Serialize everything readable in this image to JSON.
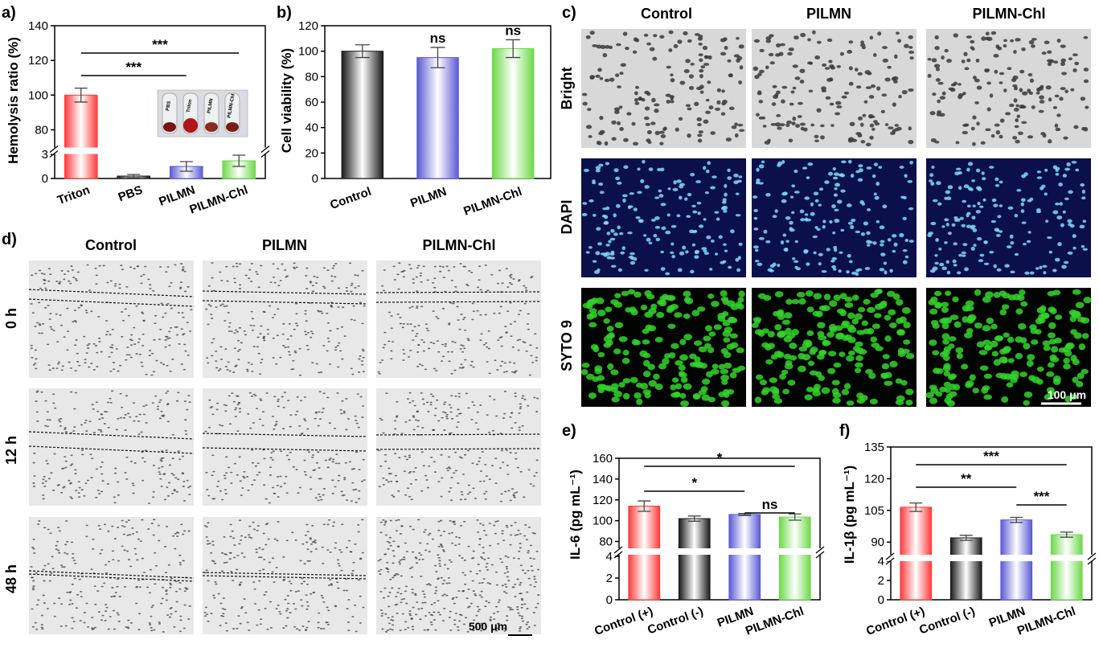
{
  "chart_data": [
    {
      "panel": "a)",
      "type": "bar",
      "ylabel": "Hemolysis ratio (%)",
      "categories": [
        "Triton",
        "PBS",
        "PILMN",
        "PILMN-Chl"
      ],
      "values": [
        100,
        0.3,
        1.5,
        2.2
      ],
      "errors": [
        4,
        0.2,
        0.6,
        0.7
      ],
      "ylim_lower": [
        0,
        3
      ],
      "ylim_upper": [
        70,
        140
      ],
      "yticks_lower": [
        "0",
        "3"
      ],
      "yticks_upper": [
        "80",
        "100",
        "120",
        "140"
      ],
      "significance": [
        {
          "from": 0,
          "to": 2,
          "label": "***"
        },
        {
          "from": 0,
          "to": 3,
          "label": "***"
        }
      ],
      "inset_tubes": [
        "PBS",
        "Triton",
        "PILMN",
        "PILMN-Chl"
      ]
    },
    {
      "panel": "b)",
      "type": "bar",
      "ylabel": "Cell viability (%)",
      "categories": [
        "Control",
        "PILMN",
        "PILMN-Chl"
      ],
      "values": [
        100,
        95,
        102
      ],
      "errors": [
        5,
        8,
        7
      ],
      "ylim": [
        0,
        120
      ],
      "yticks": [
        "0",
        "20",
        "40",
        "60",
        "80",
        "100",
        "120"
      ],
      "annotations": [
        "",
        "ns",
        "ns"
      ]
    },
    {
      "panel": "e)",
      "type": "bar",
      "ylabel": "IL-6 (pg mL⁻¹)",
      "categories": [
        "Control (+)",
        "Control (-)",
        "PILMN",
        "PILMN-Chl"
      ],
      "values": [
        114,
        102,
        106,
        103.5
      ],
      "errors": [
        5,
        2.5,
        1,
        3
      ],
      "ylim_lower": [
        0,
        4
      ],
      "ylim_upper": [
        75,
        160
      ],
      "yticks_lower": [
        "0",
        "2",
        "4"
      ],
      "yticks_upper": [
        "80",
        "100",
        "120",
        "140",
        "160"
      ],
      "significance": [
        {
          "from": 0,
          "to": 2,
          "label": "*"
        },
        {
          "from": 0,
          "to": 3,
          "label": "*"
        },
        {
          "from": 2,
          "to": 3,
          "label": "ns"
        }
      ]
    },
    {
      "panel": "f)",
      "type": "bar",
      "ylabel": "IL-1β (pg mL⁻¹)",
      "categories": [
        "Control (+)",
        "Control (-)",
        "PILMN",
        "PILMN-Chl"
      ],
      "values": [
        106.5,
        92,
        100.5,
        93.5
      ],
      "errors": [
        2,
        1.2,
        1.2,
        1.2
      ],
      "ylim_lower": [
        0,
        4
      ],
      "ylim_upper": [
        84,
        135
      ],
      "yticks_lower": [
        "0",
        "2",
        "4"
      ],
      "yticks_upper": [
        "90",
        "105",
        "120",
        "135"
      ],
      "significance": [
        {
          "from": 0,
          "to": 2,
          "label": "**"
        },
        {
          "from": 0,
          "to": 3,
          "label": "***"
        },
        {
          "from": 2,
          "to": 3,
          "label": "***"
        }
      ]
    }
  ],
  "colors": {
    "red": "#ff3b3b",
    "black": "#1a1a1a",
    "blue": "#5a5ad6",
    "green": "#6cd94a"
  },
  "panel_c": {
    "label": "c)",
    "columns": [
      "Control",
      "PILMN",
      "PILMN-Chl"
    ],
    "rows": [
      "Bright",
      "DAPI",
      "SYTO 9"
    ],
    "scale_bar": "100 μm"
  },
  "panel_d": {
    "label": "d)",
    "columns": [
      "Control",
      "PILMN",
      "PILMN-Chl"
    ],
    "rows": [
      "0 h",
      "12 h",
      "48 h"
    ],
    "scale_bar": "500 μm"
  }
}
